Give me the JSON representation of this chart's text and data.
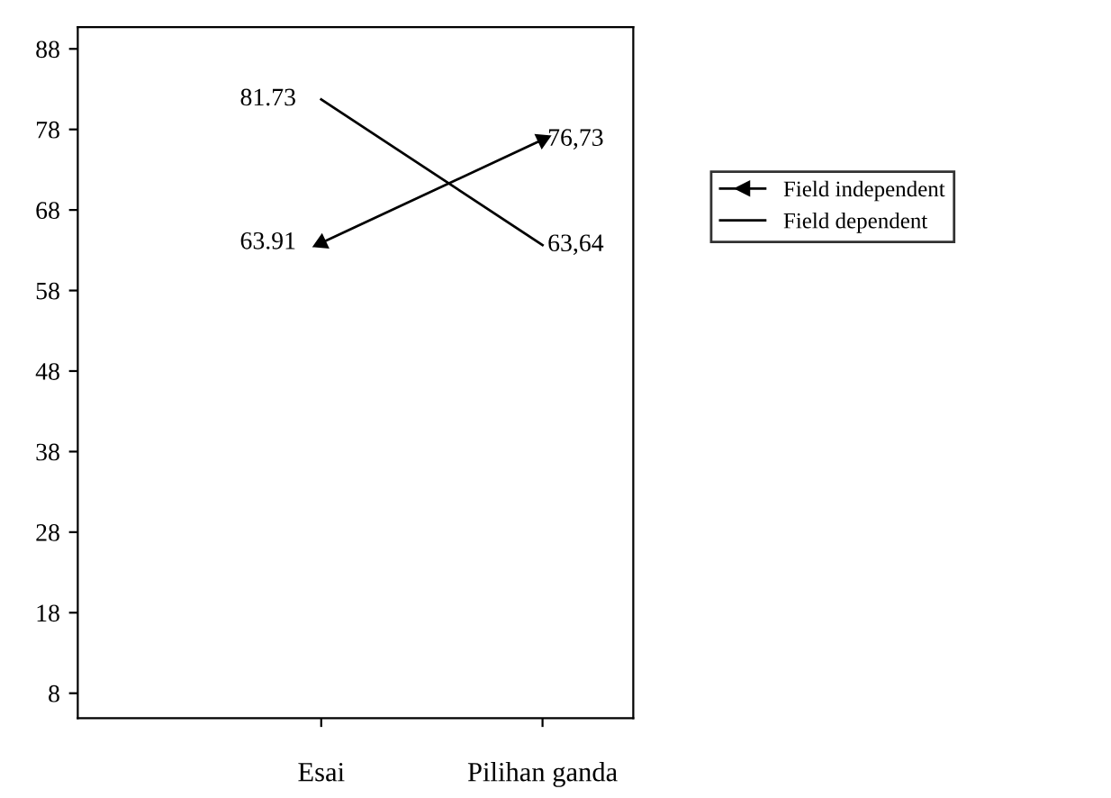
{
  "chart_data": {
    "type": "line",
    "categories": [
      "Esai",
      "Pilihan ganda"
    ],
    "series": [
      {
        "name": "Field independent",
        "color": "#000000",
        "values": [
          63.91,
          76.73
        ],
        "marker": "triangle",
        "value_labels": [
          "63.91",
          "76,73"
        ]
      },
      {
        "name": "Field dependent",
        "color": "#000000",
        "values": [
          81.73,
          63.64
        ],
        "marker": "none",
        "value_labels": [
          "81.73",
          "63,64"
        ]
      }
    ],
    "ylim": [
      4.9,
      90.7
    ],
    "yticks": [
      8,
      18,
      28,
      38,
      48,
      58,
      68,
      78,
      88
    ],
    "grid": false,
    "legend": "right",
    "line_style": "solid"
  }
}
